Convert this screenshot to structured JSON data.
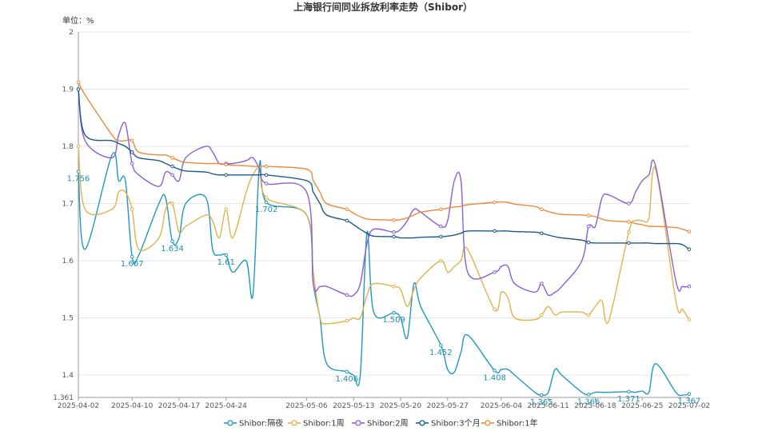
{
  "chart_data": {
    "type": "line",
    "title": "上海银行间同业拆放利率走势（Shibor）",
    "unit_label": "单位：%",
    "xlabel": "",
    "ylabel": "",
    "ylim": [
      1.361,
      2.0
    ],
    "y_ticks": [
      "2",
      "1.9",
      "1.8",
      "1.7",
      "1.6",
      "1.5",
      "1.4",
      "1.361"
    ],
    "y_tick_values": [
      2.0,
      1.9,
      1.8,
      1.7,
      1.6,
      1.5,
      1.4,
      1.361
    ],
    "x": [
      "2025-04-02",
      "2025-04-03",
      "2025-04-07",
      "2025-04-08",
      "2025-04-09",
      "2025-04-10",
      "2025-04-11",
      "2025-04-14",
      "2025-04-15",
      "2025-04-16",
      "2025-04-17",
      "2025-04-18",
      "2025-04-21",
      "2025-04-22",
      "2025-04-23",
      "2025-04-24",
      "2025-04-25",
      "2025-04-27",
      "2025-04-28",
      "2025-04-29",
      "2025-04-30",
      "2025-05-06",
      "2025-05-07",
      "2025-05-08",
      "2025-05-09",
      "2025-05-12",
      "2025-05-13",
      "2025-05-14",
      "2025-05-15",
      "2025-05-16",
      "2025-05-19",
      "2025-05-20",
      "2025-05-21",
      "2025-05-22",
      "2025-05-23",
      "2025-05-26",
      "2025-05-27",
      "2025-05-28",
      "2025-05-29",
      "2025-05-30",
      "2025-06-03",
      "2025-06-04",
      "2025-06-05",
      "2025-06-06",
      "2025-06-09",
      "2025-06-10",
      "2025-06-11",
      "2025-06-12",
      "2025-06-13",
      "2025-06-16",
      "2025-06-17",
      "2025-06-18",
      "2025-06-19",
      "2025-06-20",
      "2025-06-23",
      "2025-06-24",
      "2025-06-25",
      "2025-06-26",
      "2025-06-27",
      "2025-06-30",
      "2025-07-01",
      "2025-07-02"
    ],
    "x_ticks": [
      "2025-04-02",
      "2025-04-10",
      "2025-04-17",
      "2025-04-24",
      "2025-05-06",
      "2025-05-13",
      "2025-05-20",
      "2025-05-27",
      "2025-06-04",
      "2025-06-11",
      "2025-06-18",
      "2025-06-25",
      "2025-07-02"
    ],
    "grid": true,
    "legend_position": "bottom",
    "series": [
      {
        "name": "Shibor:隔夜",
        "color": "#1e9ac0",
        "values": [
          1.756,
          1.62,
          1.785,
          1.74,
          1.74,
          1.607,
          1.61,
          1.7,
          1.71,
          1.634,
          1.64,
          1.7,
          1.71,
          1.62,
          1.61,
          1.61,
          1.58,
          1.6,
          1.54,
          1.77,
          1.702,
          1.68,
          1.56,
          1.5,
          1.42,
          1.406,
          1.4,
          1.4,
          1.65,
          1.51,
          1.509,
          1.5,
          1.465,
          1.56,
          1.52,
          1.452,
          1.41,
          1.405,
          1.44,
          1.47,
          1.408,
          1.41,
          1.41,
          1.4,
          1.37,
          1.365,
          1.37,
          1.41,
          1.4,
          1.37,
          1.366,
          1.37,
          1.37,
          1.37,
          1.371,
          1.37,
          1.372,
          1.37,
          1.42,
          1.37,
          1.365,
          1.367
        ]
      },
      {
        "name": "Shibor:1周",
        "color": "#e0b24c",
        "values": [
          1.8,
          1.69,
          1.69,
          1.72,
          1.72,
          1.69,
          1.62,
          1.64,
          1.69,
          1.7,
          1.65,
          1.66,
          1.68,
          1.67,
          1.64,
          1.69,
          1.64,
          1.72,
          1.75,
          1.76,
          1.71,
          1.68,
          1.58,
          1.5,
          1.49,
          1.495,
          1.5,
          1.5,
          1.54,
          1.56,
          1.555,
          1.55,
          1.52,
          1.55,
          1.57,
          1.6,
          1.58,
          1.59,
          1.6,
          1.62,
          1.515,
          1.545,
          1.535,
          1.5,
          1.497,
          1.505,
          1.52,
          1.505,
          1.51,
          1.51,
          1.505,
          1.52,
          1.53,
          1.495,
          1.65,
          1.67,
          1.67,
          1.675,
          1.76,
          1.53,
          1.515,
          1.497
        ]
      },
      {
        "name": "Shibor:2周",
        "color": "#8a5fd6",
        "values": [
          1.9,
          1.81,
          1.78,
          1.82,
          1.84,
          1.77,
          1.75,
          1.73,
          1.755,
          1.75,
          1.74,
          1.78,
          1.8,
          1.79,
          1.77,
          1.77,
          1.77,
          1.775,
          1.78,
          1.76,
          1.735,
          1.72,
          1.56,
          1.555,
          1.555,
          1.54,
          1.54,
          1.56,
          1.63,
          1.655,
          1.65,
          1.655,
          1.67,
          1.69,
          1.685,
          1.66,
          1.67,
          1.74,
          1.74,
          1.58,
          1.58,
          1.59,
          1.59,
          1.56,
          1.545,
          1.56,
          1.54,
          1.545,
          1.555,
          1.6,
          1.66,
          1.66,
          1.71,
          1.715,
          1.7,
          1.72,
          1.74,
          1.75,
          1.765,
          1.565,
          1.555,
          1.555
        ]
      },
      {
        "name": "Shibor:3个月",
        "color": "#1b5b8c",
        "values": [
          1.9,
          1.82,
          1.81,
          1.805,
          1.8,
          1.79,
          1.78,
          1.775,
          1.77,
          1.765,
          1.76,
          1.757,
          1.755,
          1.752,
          1.75,
          1.75,
          1.75,
          1.75,
          1.75,
          1.75,
          1.75,
          1.74,
          1.72,
          1.7,
          1.68,
          1.67,
          1.663,
          1.655,
          1.648,
          1.643,
          1.642,
          1.64,
          1.64,
          1.64,
          1.641,
          1.642,
          1.643,
          1.645,
          1.648,
          1.652,
          1.652,
          1.652,
          1.652,
          1.651,
          1.65,
          1.648,
          1.645,
          1.642,
          1.64,
          1.636,
          1.632,
          1.631,
          1.631,
          1.631,
          1.631,
          1.631,
          1.631,
          1.631,
          1.63,
          1.63,
          1.628,
          1.62
        ]
      },
      {
        "name": "Shibor:1年",
        "color": "#ec8a3a",
        "values": [
          1.912,
          1.89,
          1.82,
          1.81,
          1.81,
          1.81,
          1.79,
          1.785,
          1.785,
          1.78,
          1.775,
          1.772,
          1.77,
          1.77,
          1.77,
          1.768,
          1.767,
          1.766,
          1.765,
          1.765,
          1.765,
          1.76,
          1.74,
          1.72,
          1.7,
          1.69,
          1.683,
          1.677,
          1.673,
          1.672,
          1.671,
          1.672,
          1.675,
          1.68,
          1.685,
          1.69,
          1.692,
          1.694,
          1.695,
          1.698,
          1.702,
          1.703,
          1.702,
          1.699,
          1.695,
          1.69,
          1.686,
          1.683,
          1.681,
          1.68,
          1.679,
          1.677,
          1.673,
          1.67,
          1.668,
          1.665,
          1.663,
          1.66,
          1.66,
          1.658,
          1.655,
          1.651
        ]
      }
    ],
    "data_labels": [
      {
        "series": 0,
        "index": 0,
        "text": "1.756"
      },
      {
        "series": 0,
        "index": 5,
        "text": "1.607"
      },
      {
        "series": 0,
        "index": 9,
        "text": "1.634"
      },
      {
        "series": 0,
        "index": 15,
        "text": "1.61"
      },
      {
        "series": 0,
        "index": 20,
        "text": "1.702"
      },
      {
        "series": 0,
        "index": 25,
        "text": "1.406"
      },
      {
        "series": 0,
        "index": 30,
        "text": "1.509"
      },
      {
        "series": 0,
        "index": 35,
        "text": "1.452"
      },
      {
        "series": 0,
        "index": 40,
        "text": "1.408"
      },
      {
        "series": 0,
        "index": 45,
        "text": "1.365"
      },
      {
        "series": 0,
        "index": 50,
        "text": "1.366"
      },
      {
        "series": 0,
        "index": 54,
        "text": "1.371"
      },
      {
        "series": 0,
        "index": 61,
        "text": "1.367"
      }
    ]
  }
}
